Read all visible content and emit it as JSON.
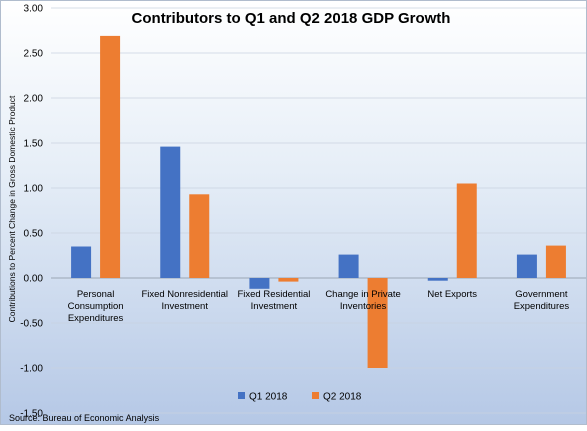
{
  "chart_data": {
    "type": "bar",
    "title": "Contributors to Q1 and Q2 2018 GDP Growth",
    "xlabel": "",
    "ylabel": "Contributions to Percent Change in Gross Domestic Product",
    "ylim": [
      -1.5,
      3.0
    ],
    "yticks": [
      "3.00",
      "2.50",
      "2.00",
      "1.50",
      "1.00",
      "0.50",
      "0.00",
      "-0.50",
      "-1.00",
      "-1.50"
    ],
    "categories": [
      [
        "Personal",
        "Consumption",
        "Expenditures"
      ],
      [
        "Fixed Nonresidential",
        "Investment"
      ],
      [
        "Fixed Residential",
        "Investment"
      ],
      [
        "Change in Private",
        "Inventories"
      ],
      [
        "Net Exports"
      ],
      [
        "Government",
        "Expenditures"
      ]
    ],
    "series": [
      {
        "name": "Q1 2018",
        "color": "#4472c4",
        "values": [
          0.35,
          1.46,
          -0.12,
          0.26,
          -0.03,
          0.26
        ]
      },
      {
        "name": "Q2 2018",
        "color": "#ed7d31",
        "values": [
          2.69,
          0.93,
          -0.04,
          -1.0,
          1.05,
          0.36
        ]
      }
    ],
    "grid": true,
    "legend_position": "bottom"
  },
  "source": "Source: Bureau of Economic Analysis"
}
